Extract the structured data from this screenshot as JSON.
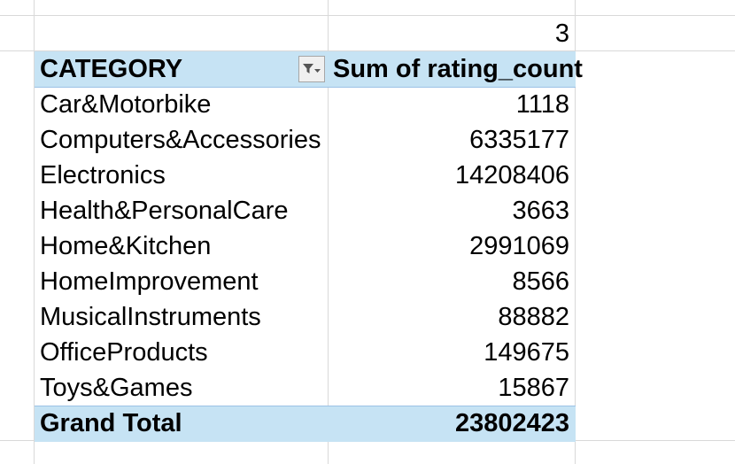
{
  "top_cell": {
    "value": "3"
  },
  "pivot": {
    "header": {
      "row_label": "CATEGORY",
      "value_label": "Sum of rating_count",
      "filter_icon": "filter-dropdown-icon"
    },
    "rows": [
      {
        "category": "Car&Motorbike",
        "value": "1118"
      },
      {
        "category": "Computers&Accessories",
        "value": "6335177"
      },
      {
        "category": "Electronics",
        "value": "14208406"
      },
      {
        "category": "Health&PersonalCare",
        "value": "3663"
      },
      {
        "category": "Home&Kitchen",
        "value": "2991069"
      },
      {
        "category": "HomeImprovement",
        "value": "8566"
      },
      {
        "category": "MusicalInstruments",
        "value": "88882"
      },
      {
        "category": "OfficeProducts",
        "value": "149675"
      },
      {
        "category": "Toys&Games",
        "value": "15867"
      }
    ],
    "grand_total": {
      "label": "Grand Total",
      "value": "23802423"
    }
  },
  "colors": {
    "header_fill": "#c6e3f4",
    "gridline": "#d9d9d9"
  }
}
